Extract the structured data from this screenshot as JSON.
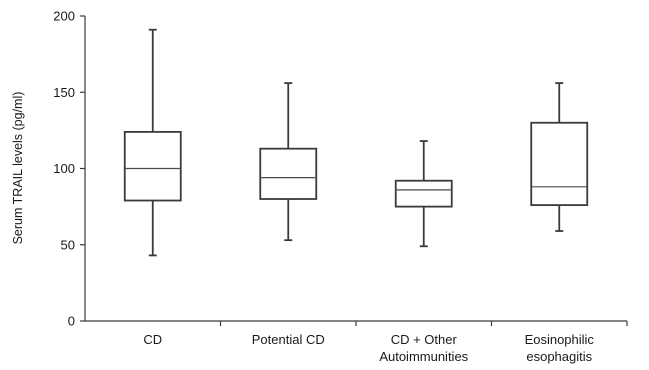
{
  "chart_data": {
    "type": "box",
    "title": "",
    "xlabel": "",
    "ylabel": "Serum TRAIL levels (pg/ml)",
    "ylim": [
      0,
      200
    ],
    "yticks": [
      0,
      50,
      100,
      150,
      200
    ],
    "grid": false,
    "legend": "none",
    "colors": {
      "stroke": "#3a3a3a",
      "median": "#4a4a4a",
      "text": "#1a1a1a"
    },
    "categories": [
      {
        "lines": [
          "CD"
        ]
      },
      {
        "lines": [
          "Potential CD"
        ]
      },
      {
        "lines": [
          "CD + Other",
          "Autoimmunities"
        ]
      },
      {
        "lines": [
          "Eosinophilic",
          "esophagitis"
        ]
      }
    ],
    "boxes": [
      {
        "min": 43,
        "q1": 79,
        "median": 100,
        "q3": 124,
        "max": 191
      },
      {
        "min": 53,
        "q1": 80,
        "median": 94,
        "q3": 113,
        "max": 156
      },
      {
        "min": 49,
        "q1": 75,
        "median": 86,
        "q3": 92,
        "max": 118
      },
      {
        "min": 59,
        "q1": 76,
        "median": 88,
        "q3": 130,
        "max": 156
      }
    ]
  }
}
